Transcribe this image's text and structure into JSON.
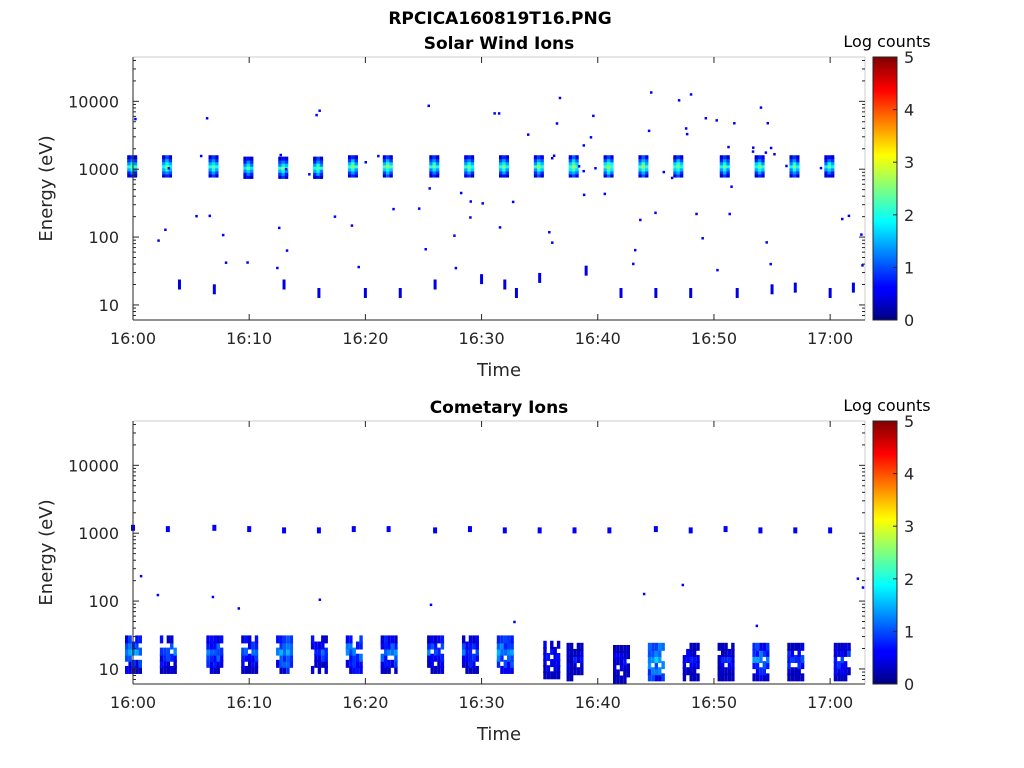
{
  "figure": {
    "title": "RPCICA160819T16.PNG"
  },
  "chart_data": [
    {
      "type": "heatmap",
      "title": "Solar Wind Ions",
      "xlabel": "Time",
      "ylabel": "Energy (eV)",
      "y_scale": "log",
      "x_range": [
        "16:00",
        "17:03"
      ],
      "ylim": [
        6,
        45000
      ],
      "x_ticks": [
        "16:00",
        "16:10",
        "16:20",
        "16:30",
        "16:40",
        "16:50",
        "17:00"
      ],
      "y_ticks": [
        "10",
        "100",
        "1000",
        "10000"
      ],
      "colorbar": {
        "label": "Log counts",
        "range": [
          0,
          5
        ],
        "ticks": [
          "0",
          "1",
          "2",
          "3",
          "4",
          "5"
        ]
      },
      "clusters": [
        {
          "t": "16:00",
          "e": 1100,
          "peak": 2.6
        },
        {
          "t": "16:03",
          "e": 1100,
          "peak": 2.7
        },
        {
          "t": "16:07",
          "e": 1100,
          "peak": 2.6
        },
        {
          "t": "16:10",
          "e": 1050,
          "peak": 2.5
        },
        {
          "t": "16:13",
          "e": 1050,
          "peak": 2.6
        },
        {
          "t": "16:16",
          "e": 1050,
          "peak": 2.6
        },
        {
          "t": "16:19",
          "e": 1100,
          "peak": 2.7
        },
        {
          "t": "16:22",
          "e": 1100,
          "peak": 2.8
        },
        {
          "t": "16:26",
          "e": 1100,
          "peak": 2.6
        },
        {
          "t": "16:29",
          "e": 1100,
          "peak": 2.7
        },
        {
          "t": "16:32",
          "e": 1100,
          "peak": 2.6
        },
        {
          "t": "16:35",
          "e": 1100,
          "peak": 2.7
        },
        {
          "t": "16:38",
          "e": 1100,
          "peak": 2.9
        },
        {
          "t": "16:41",
          "e": 1100,
          "peak": 2.9
        },
        {
          "t": "16:44",
          "e": 1100,
          "peak": 2.8
        },
        {
          "t": "16:47",
          "e": 1100,
          "peak": 2.7
        },
        {
          "t": "16:51",
          "e": 1100,
          "peak": 2.6
        },
        {
          "t": "16:54",
          "e": 1100,
          "peak": 2.7
        },
        {
          "t": "16:57",
          "e": 1100,
          "peak": 2.6
        },
        {
          "t": "17:00",
          "e": 1100,
          "peak": 2.5
        }
      ],
      "low_energy_events": [
        {
          "t": "16:04",
          "e": 20
        },
        {
          "t": "16:07",
          "e": 17
        },
        {
          "t": "16:13",
          "e": 20
        },
        {
          "t": "16:16",
          "e": 15
        },
        {
          "t": "16:20",
          "e": 15
        },
        {
          "t": "16:23",
          "e": 15
        },
        {
          "t": "16:26",
          "e": 20
        },
        {
          "t": "16:30",
          "e": 24
        },
        {
          "t": "16:32",
          "e": 20
        },
        {
          "t": "16:33",
          "e": 15
        },
        {
          "t": "16:35",
          "e": 25
        },
        {
          "t": "16:39",
          "e": 32
        },
        {
          "t": "16:42",
          "e": 15
        },
        {
          "t": "16:45",
          "e": 15
        },
        {
          "t": "16:48",
          "e": 15
        },
        {
          "t": "16:52",
          "e": 15
        },
        {
          "t": "16:55",
          "e": 17
        },
        {
          "t": "16:57",
          "e": 18
        },
        {
          "t": "17:00",
          "e": 15
        },
        {
          "t": "17:02",
          "e": 18
        }
      ]
    },
    {
      "type": "heatmap",
      "title": "Cometary Ions",
      "xlabel": "Time",
      "ylabel": "Energy (eV)",
      "y_scale": "log",
      "x_range": [
        "16:00",
        "17:03"
      ],
      "ylim": [
        6,
        45000
      ],
      "x_ticks": [
        "16:00",
        "16:10",
        "16:20",
        "16:30",
        "16:40",
        "16:50",
        "17:00"
      ],
      "y_ticks": [
        "10",
        "100",
        "1000",
        "10000"
      ],
      "colorbar": {
        "label": "Log counts",
        "range": [
          0,
          5
        ],
        "ticks": [
          "0",
          "1",
          "2",
          "3",
          "4",
          "5"
        ]
      },
      "high_energy_events": [
        {
          "t": "16:00",
          "e": 1200
        },
        {
          "t": "16:03",
          "e": 1150
        },
        {
          "t": "16:07",
          "e": 1200
        },
        {
          "t": "16:10",
          "e": 1150
        },
        {
          "t": "16:13",
          "e": 1100
        },
        {
          "t": "16:16",
          "e": 1100
        },
        {
          "t": "16:19",
          "e": 1150
        },
        {
          "t": "16:22",
          "e": 1150
        },
        {
          "t": "16:26",
          "e": 1100
        },
        {
          "t": "16:29",
          "e": 1150
        },
        {
          "t": "16:32",
          "e": 1100
        },
        {
          "t": "16:35",
          "e": 1100
        },
        {
          "t": "16:38",
          "e": 1100
        },
        {
          "t": "16:41",
          "e": 1100
        },
        {
          "t": "16:45",
          "e": 1150
        },
        {
          "t": "16:48",
          "e": 1100
        },
        {
          "t": "16:51",
          "e": 1150
        },
        {
          "t": "16:54",
          "e": 1100
        },
        {
          "t": "16:57",
          "e": 1100
        },
        {
          "t": "17:00",
          "e": 1100
        }
      ],
      "low_energy_bursts": [
        {
          "t": "16:00",
          "e": 18,
          "peak": 1.5
        },
        {
          "t": "16:03",
          "e": 18,
          "peak": 1.3
        },
        {
          "t": "16:07",
          "e": 18,
          "peak": 1.4
        },
        {
          "t": "16:10",
          "e": 18,
          "peak": 1.2
        },
        {
          "t": "16:13",
          "e": 18,
          "peak": 1.6
        },
        {
          "t": "16:16",
          "e": 18,
          "peak": 1.2
        },
        {
          "t": "16:19",
          "e": 18,
          "peak": 1.5
        },
        {
          "t": "16:22",
          "e": 18,
          "peak": 1.4
        },
        {
          "t": "16:26",
          "e": 18,
          "peak": 1.3
        },
        {
          "t": "16:29",
          "e": 18,
          "peak": 1.3
        },
        {
          "t": "16:32",
          "e": 18,
          "peak": 1.6
        },
        {
          "t": "16:36",
          "e": 15,
          "peak": 1.1
        },
        {
          "t": "16:38",
          "e": 14,
          "peak": 0.8
        },
        {
          "t": "16:42",
          "e": 13,
          "peak": 0.8
        },
        {
          "t": "16:45",
          "e": 14,
          "peak": 1.8
        },
        {
          "t": "16:48",
          "e": 14,
          "peak": 0.9
        },
        {
          "t": "16:51",
          "e": 14,
          "peak": 0.9
        },
        {
          "t": "16:54",
          "e": 14,
          "peak": 1.5
        },
        {
          "t": "16:57",
          "e": 14,
          "peak": 1.2
        },
        {
          "t": "17:01",
          "e": 14,
          "peak": 1.2
        }
      ]
    }
  ]
}
